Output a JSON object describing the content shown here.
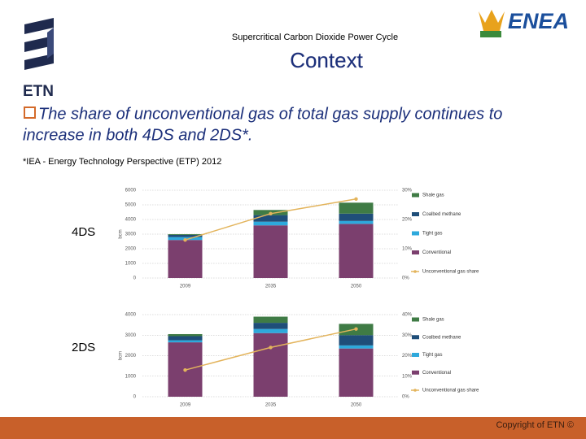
{
  "header": {
    "subtitle": "Supercritical Carbon Dioxide Power Cycle",
    "title": "Context",
    "logo_left": "ETN",
    "logo_right": "ENEA"
  },
  "body": {
    "bullet": [
      "The share of unconventional gas of total gas supply continues to",
      "increase in both 4DS and 2DS*."
    ],
    "footnote": "*IEA - Energy Technology  Perspective (ETP) 2012"
  },
  "footer": {
    "text": "Copyright of ETN ©"
  },
  "chart_data": [
    {
      "type": "bar",
      "stacked": true,
      "title": "4DS",
      "ylabel": "bcm",
      "grid": true,
      "categories": [
        "2009",
        "2035",
        "2050"
      ],
      "series": [
        {
          "name": "Conventional",
          "color": "#7b3f6e",
          "values": [
            2600,
            3600,
            3700
          ]
        },
        {
          "name": "Tight gas",
          "color": "#2ea9dc",
          "values": [
            200,
            250,
            200
          ]
        },
        {
          "name": "Coalbed methane",
          "color": "#1f4e79",
          "values": [
            150,
            450,
            500
          ]
        },
        {
          "name": "Shale gas",
          "color": "#3f7b45",
          "values": [
            50,
            350,
            750
          ]
        },
        {
          "name": "Unconventional gas share",
          "color": "#e3b45c",
          "axis": "y2",
          "type": "line",
          "values": [
            13,
            22,
            27
          ]
        }
      ],
      "ylim": [
        0,
        6000
      ],
      "yticks": [
        0,
        1000,
        2000,
        3000,
        4000,
        5000,
        6000
      ],
      "y2lim": [
        0,
        30
      ],
      "y2ticks": [
        {
          "value": 0,
          "label": "0%"
        },
        {
          "value": 10,
          "label": "10%"
        },
        {
          "value": 20,
          "label": "20%"
        },
        {
          "value": 30,
          "label": "30%"
        }
      ]
    },
    {
      "type": "bar",
      "stacked": true,
      "title": "2DS",
      "ylabel": "bcm",
      "grid": true,
      "categories": [
        "2009",
        "2035",
        "2050"
      ],
      "series": [
        {
          "name": "Conventional",
          "color": "#7b3f6e",
          "values": [
            2650,
            3100,
            2350
          ]
        },
        {
          "name": "Tight gas",
          "color": "#2ea9dc",
          "values": [
            100,
            200,
            150
          ]
        },
        {
          "name": "Coalbed methane",
          "color": "#1f4e79",
          "values": [
            200,
            300,
            500
          ]
        },
        {
          "name": "Shale gas",
          "color": "#3f7b45",
          "values": [
            100,
            300,
            550
          ]
        },
        {
          "name": "Unconventional gas share",
          "color": "#e3b45c",
          "axis": "y2",
          "type": "line",
          "values": [
            13,
            24,
            33
          ]
        }
      ],
      "ylim": [
        0,
        4000
      ],
      "yticks": [
        0,
        1000,
        2000,
        3000,
        4000
      ],
      "y2lim": [
        0,
        40
      ],
      "y2ticks": [
        {
          "value": 0,
          "label": "0%"
        },
        {
          "value": 10,
          "label": "10%"
        },
        {
          "value": 20,
          "label": "20%"
        },
        {
          "value": 30,
          "label": "30%"
        },
        {
          "value": 40,
          "label": "40%"
        }
      ]
    }
  ]
}
